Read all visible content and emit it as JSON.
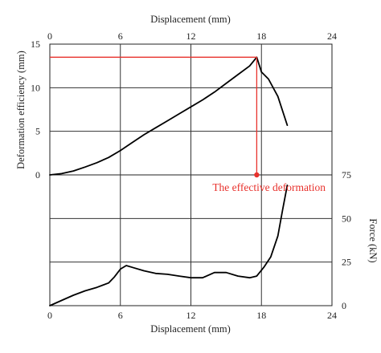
{
  "chart_data": [
    {
      "id": "top",
      "type": "line",
      "xlabel": "Displacement (mm)",
      "ylabel": "Deformation efficiency (mm)",
      "xlim": [
        0,
        24
      ],
      "ylim": [
        0,
        15
      ],
      "xticks": [
        "0",
        "6",
        "12",
        "18",
        "24"
      ],
      "yticks": [
        "0",
        "5",
        "10",
        "15"
      ],
      "grid": true,
      "series": [
        {
          "color": "#000000",
          "x": [
            0,
            1,
            2,
            3,
            4,
            5,
            6,
            7,
            8,
            9,
            10,
            11,
            12,
            13,
            14,
            15,
            16,
            17,
            17.6,
            18,
            18.6,
            19.4,
            20.2
          ],
          "y": [
            0,
            0.15,
            0.45,
            0.9,
            1.4,
            2.0,
            2.8,
            3.7,
            4.6,
            5.4,
            6.2,
            7.0,
            7.8,
            8.6,
            9.5,
            10.5,
            11.5,
            12.5,
            13.5,
            11.8,
            11.0,
            9.0,
            5.7
          ]
        }
      ],
      "annotations": [
        {
          "text": "The effective deformation",
          "color": "#e8322d",
          "x": 17.6,
          "y": 13.5
        }
      ]
    },
    {
      "id": "bottom",
      "type": "line",
      "xlabel": "Displacement (mm)",
      "ylabel": "Force (kN)",
      "xlim": [
        0,
        24
      ],
      "ylim": [
        0,
        75
      ],
      "xticks": [
        "0",
        "6",
        "12",
        "18",
        "24"
      ],
      "yticks": [
        "0",
        "25",
        "50",
        "75"
      ],
      "grid": true,
      "series": [
        {
          "color": "#000000",
          "x": [
            0,
            1,
            2,
            3,
            4,
            5,
            5.5,
            6,
            6.5,
            7,
            8,
            9,
            10,
            11,
            12,
            13,
            14,
            15,
            16,
            17,
            17.6,
            18.2,
            18.8,
            19.4,
            19.8,
            20.2
          ],
          "y": [
            0,
            3,
            6,
            8.5,
            10.5,
            13,
            16.5,
            21,
            23,
            22,
            20,
            18.5,
            18,
            17,
            16,
            16,
            19,
            19,
            17,
            16,
            17,
            22,
            28,
            40,
            55,
            69
          ]
        }
      ]
    }
  ]
}
